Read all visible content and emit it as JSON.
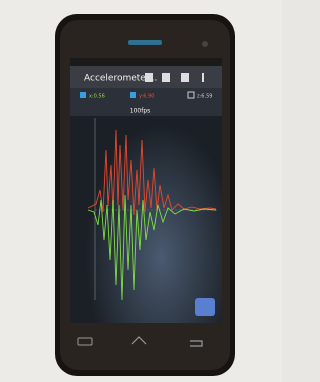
{
  "app_bar": {
    "title": "Accelerometer..."
  },
  "legend": [
    "x:0.56",
    "y:6.90",
    "z:6.59"
  ],
  "chart": {
    "rate": "100fps"
  }
}
